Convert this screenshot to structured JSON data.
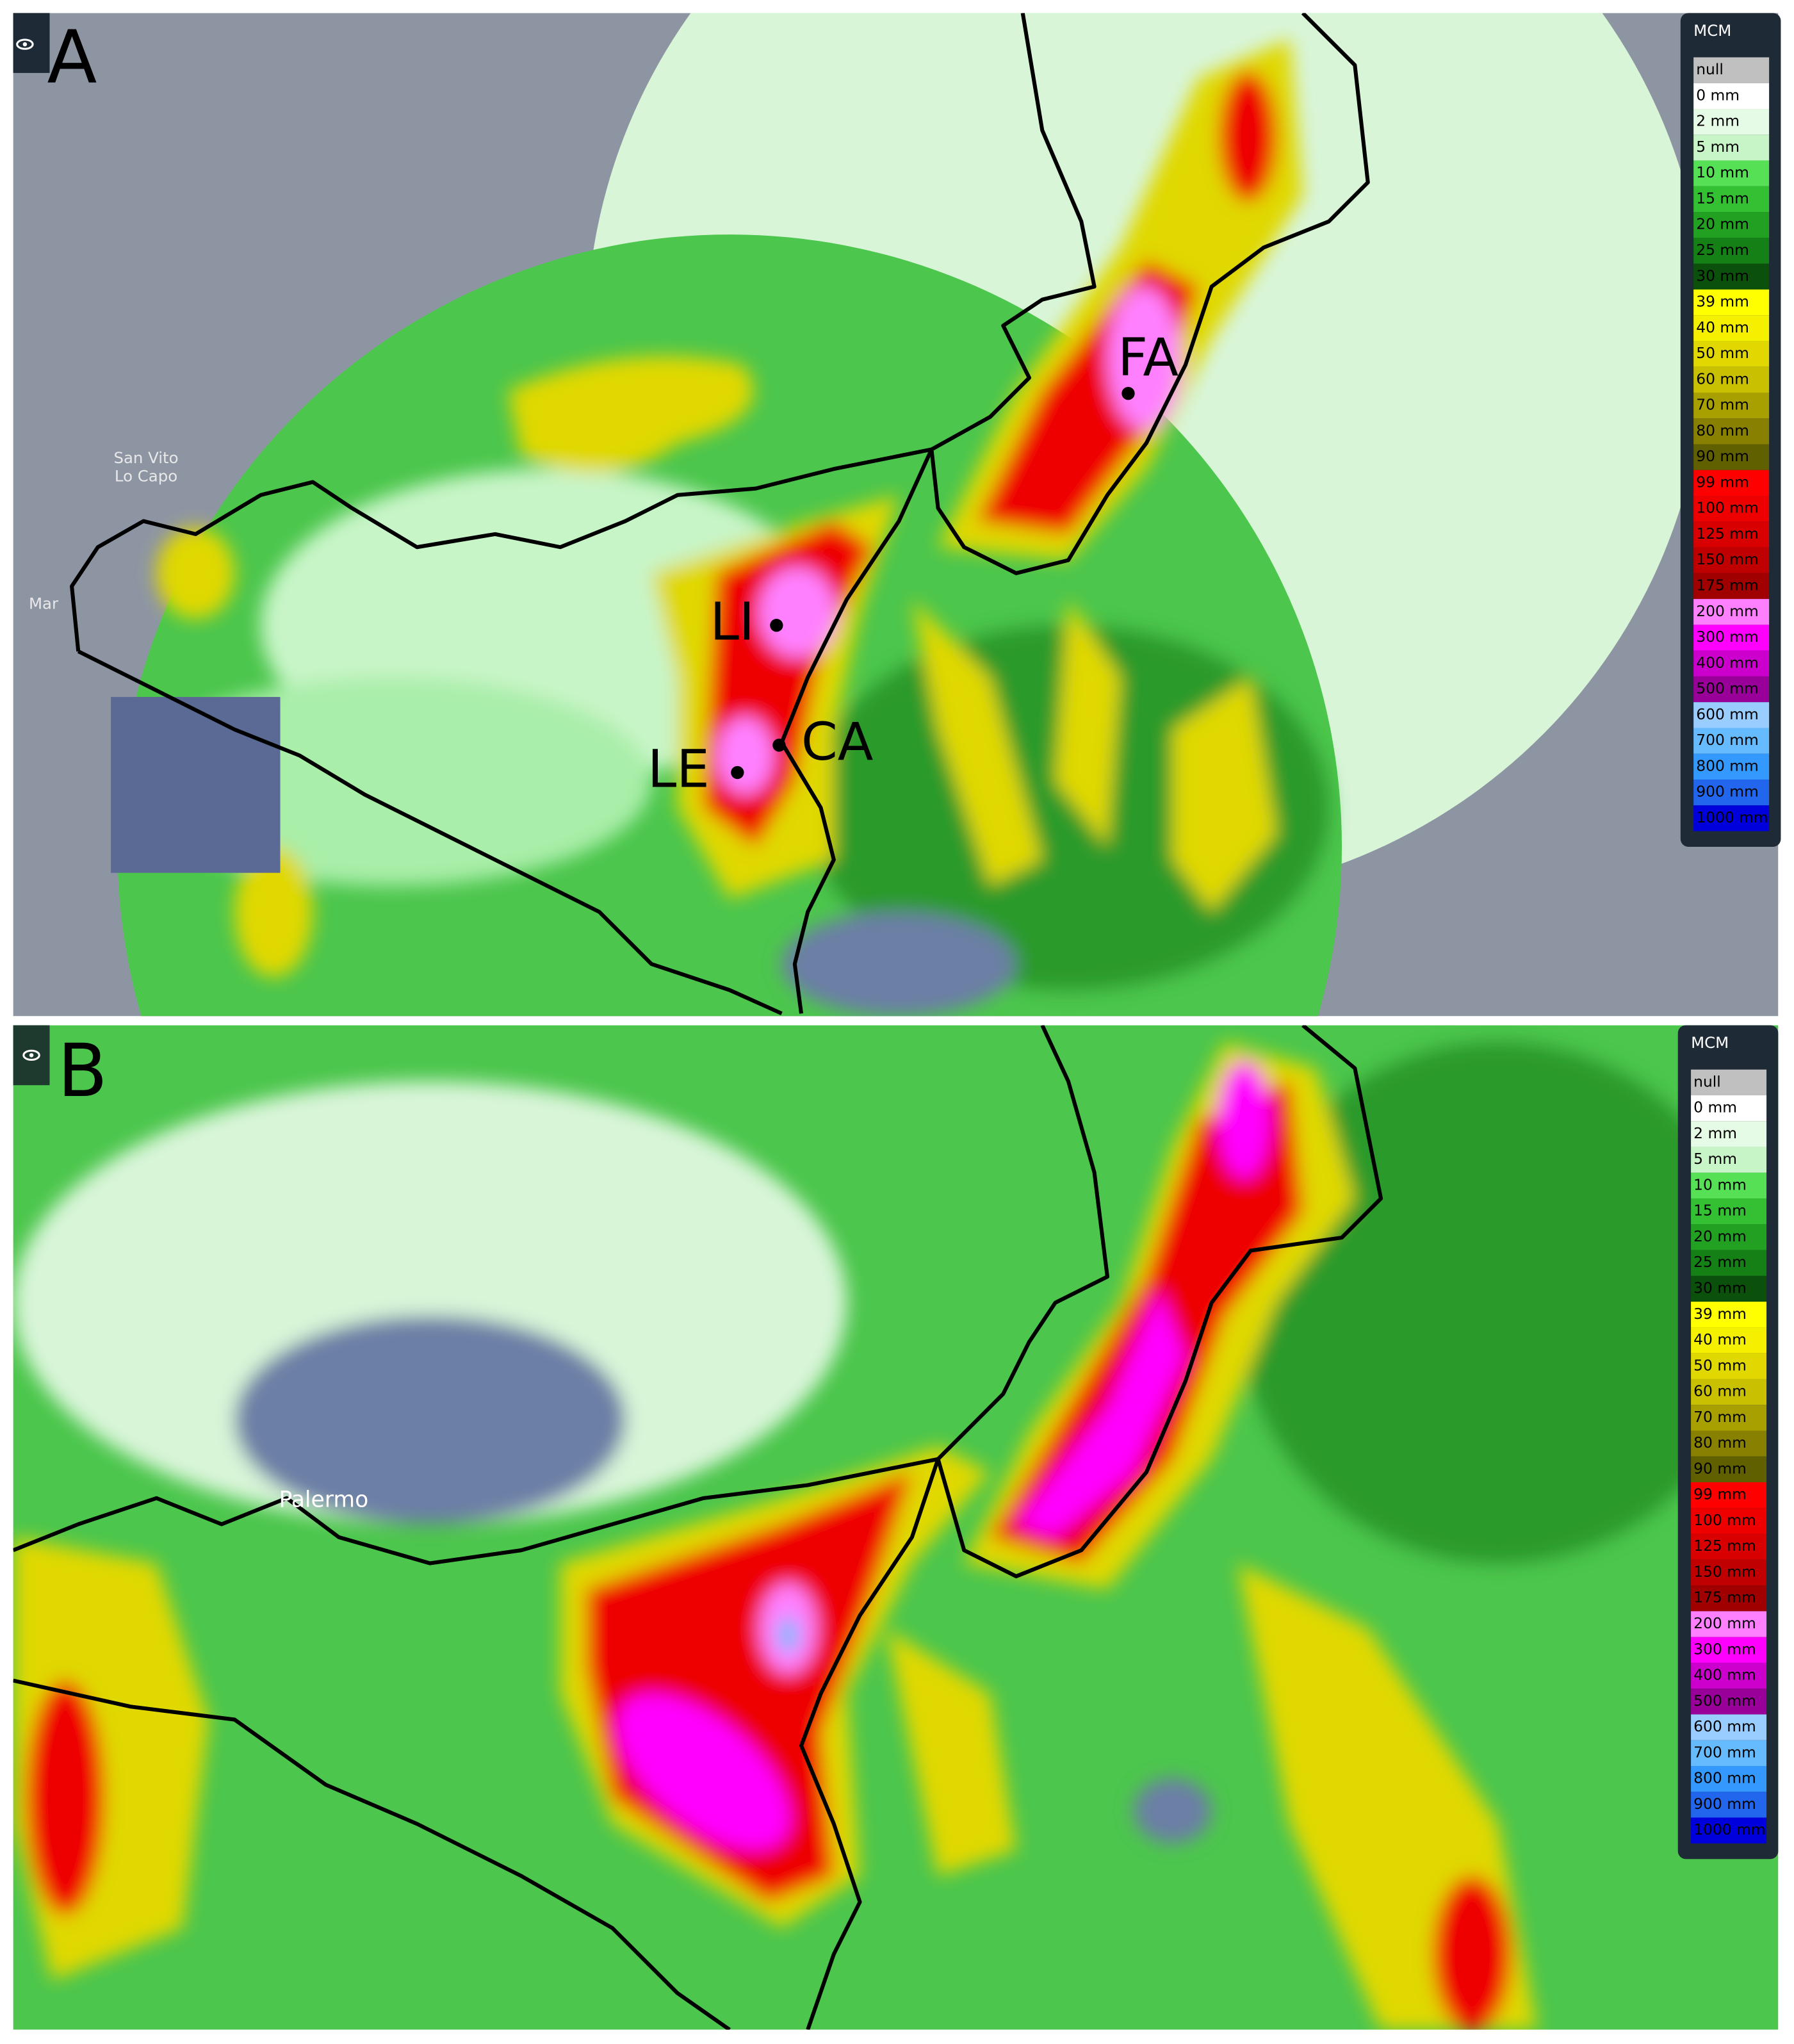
{
  "panels": [
    {
      "label": "A",
      "places": [
        {
          "label": "FA"
        },
        {
          "label": "LI"
        },
        {
          "label": "CA"
        },
        {
          "label": "LE"
        },
        {
          "label": "San Vito"
        },
        {
          "label": "Lo Capo"
        },
        {
          "label": "Mar"
        }
      ]
    },
    {
      "label": "B",
      "places": [
        {
          "label": "Palermo"
        }
      ]
    }
  ],
  "legend": {
    "title": "MCM",
    "items": [
      {
        "label": "null",
        "color": "#c0c0c0"
      },
      {
        "label": "0 mm",
        "color": "#ffffff"
      },
      {
        "label": "2 mm",
        "color": "#e6fbe6"
      },
      {
        "label": "5 mm",
        "color": "#c8f5c8"
      },
      {
        "label": "10 mm",
        "color": "#55e055"
      },
      {
        "label": "15 mm",
        "color": "#33c033"
      },
      {
        "label": "20 mm",
        "color": "#22a022"
      },
      {
        "label": "25 mm",
        "color": "#158015"
      },
      {
        "label": "30 mm",
        "color": "#0b500b"
      },
      {
        "label": "39 mm",
        "color": "#ffff00"
      },
      {
        "label": "40 mm",
        "color": "#f5f000"
      },
      {
        "label": "50 mm",
        "color": "#e0d800"
      },
      {
        "label": "60 mm",
        "color": "#c8c000"
      },
      {
        "label": "70 mm",
        "color": "#a8a000"
      },
      {
        "label": "80 mm",
        "color": "#888000"
      },
      {
        "label": "90 mm",
        "color": "#606000"
      },
      {
        "label": "99 mm",
        "color": "#ff0000"
      },
      {
        "label": "100 mm",
        "color": "#ee0000"
      },
      {
        "label": "125 mm",
        "color": "#d80000"
      },
      {
        "label": "150 mm",
        "color": "#c00000"
      },
      {
        "label": "175 mm",
        "color": "#a00000"
      },
      {
        "label": "200 mm",
        "color": "#ff80ff"
      },
      {
        "label": "300 mm",
        "color": "#ff00ff"
      },
      {
        "label": "400 mm",
        "color": "#cc00cc"
      },
      {
        "label": "500 mm",
        "color": "#990099"
      },
      {
        "label": "600 mm",
        "color": "#99ccff"
      },
      {
        "label": "700 mm",
        "color": "#66bbff"
      },
      {
        "label": "800 mm",
        "color": "#3399ff"
      },
      {
        "label": "900 mm",
        "color": "#2266ee"
      },
      {
        "label": "1000 mm",
        "color": "#0000dd"
      }
    ]
  }
}
